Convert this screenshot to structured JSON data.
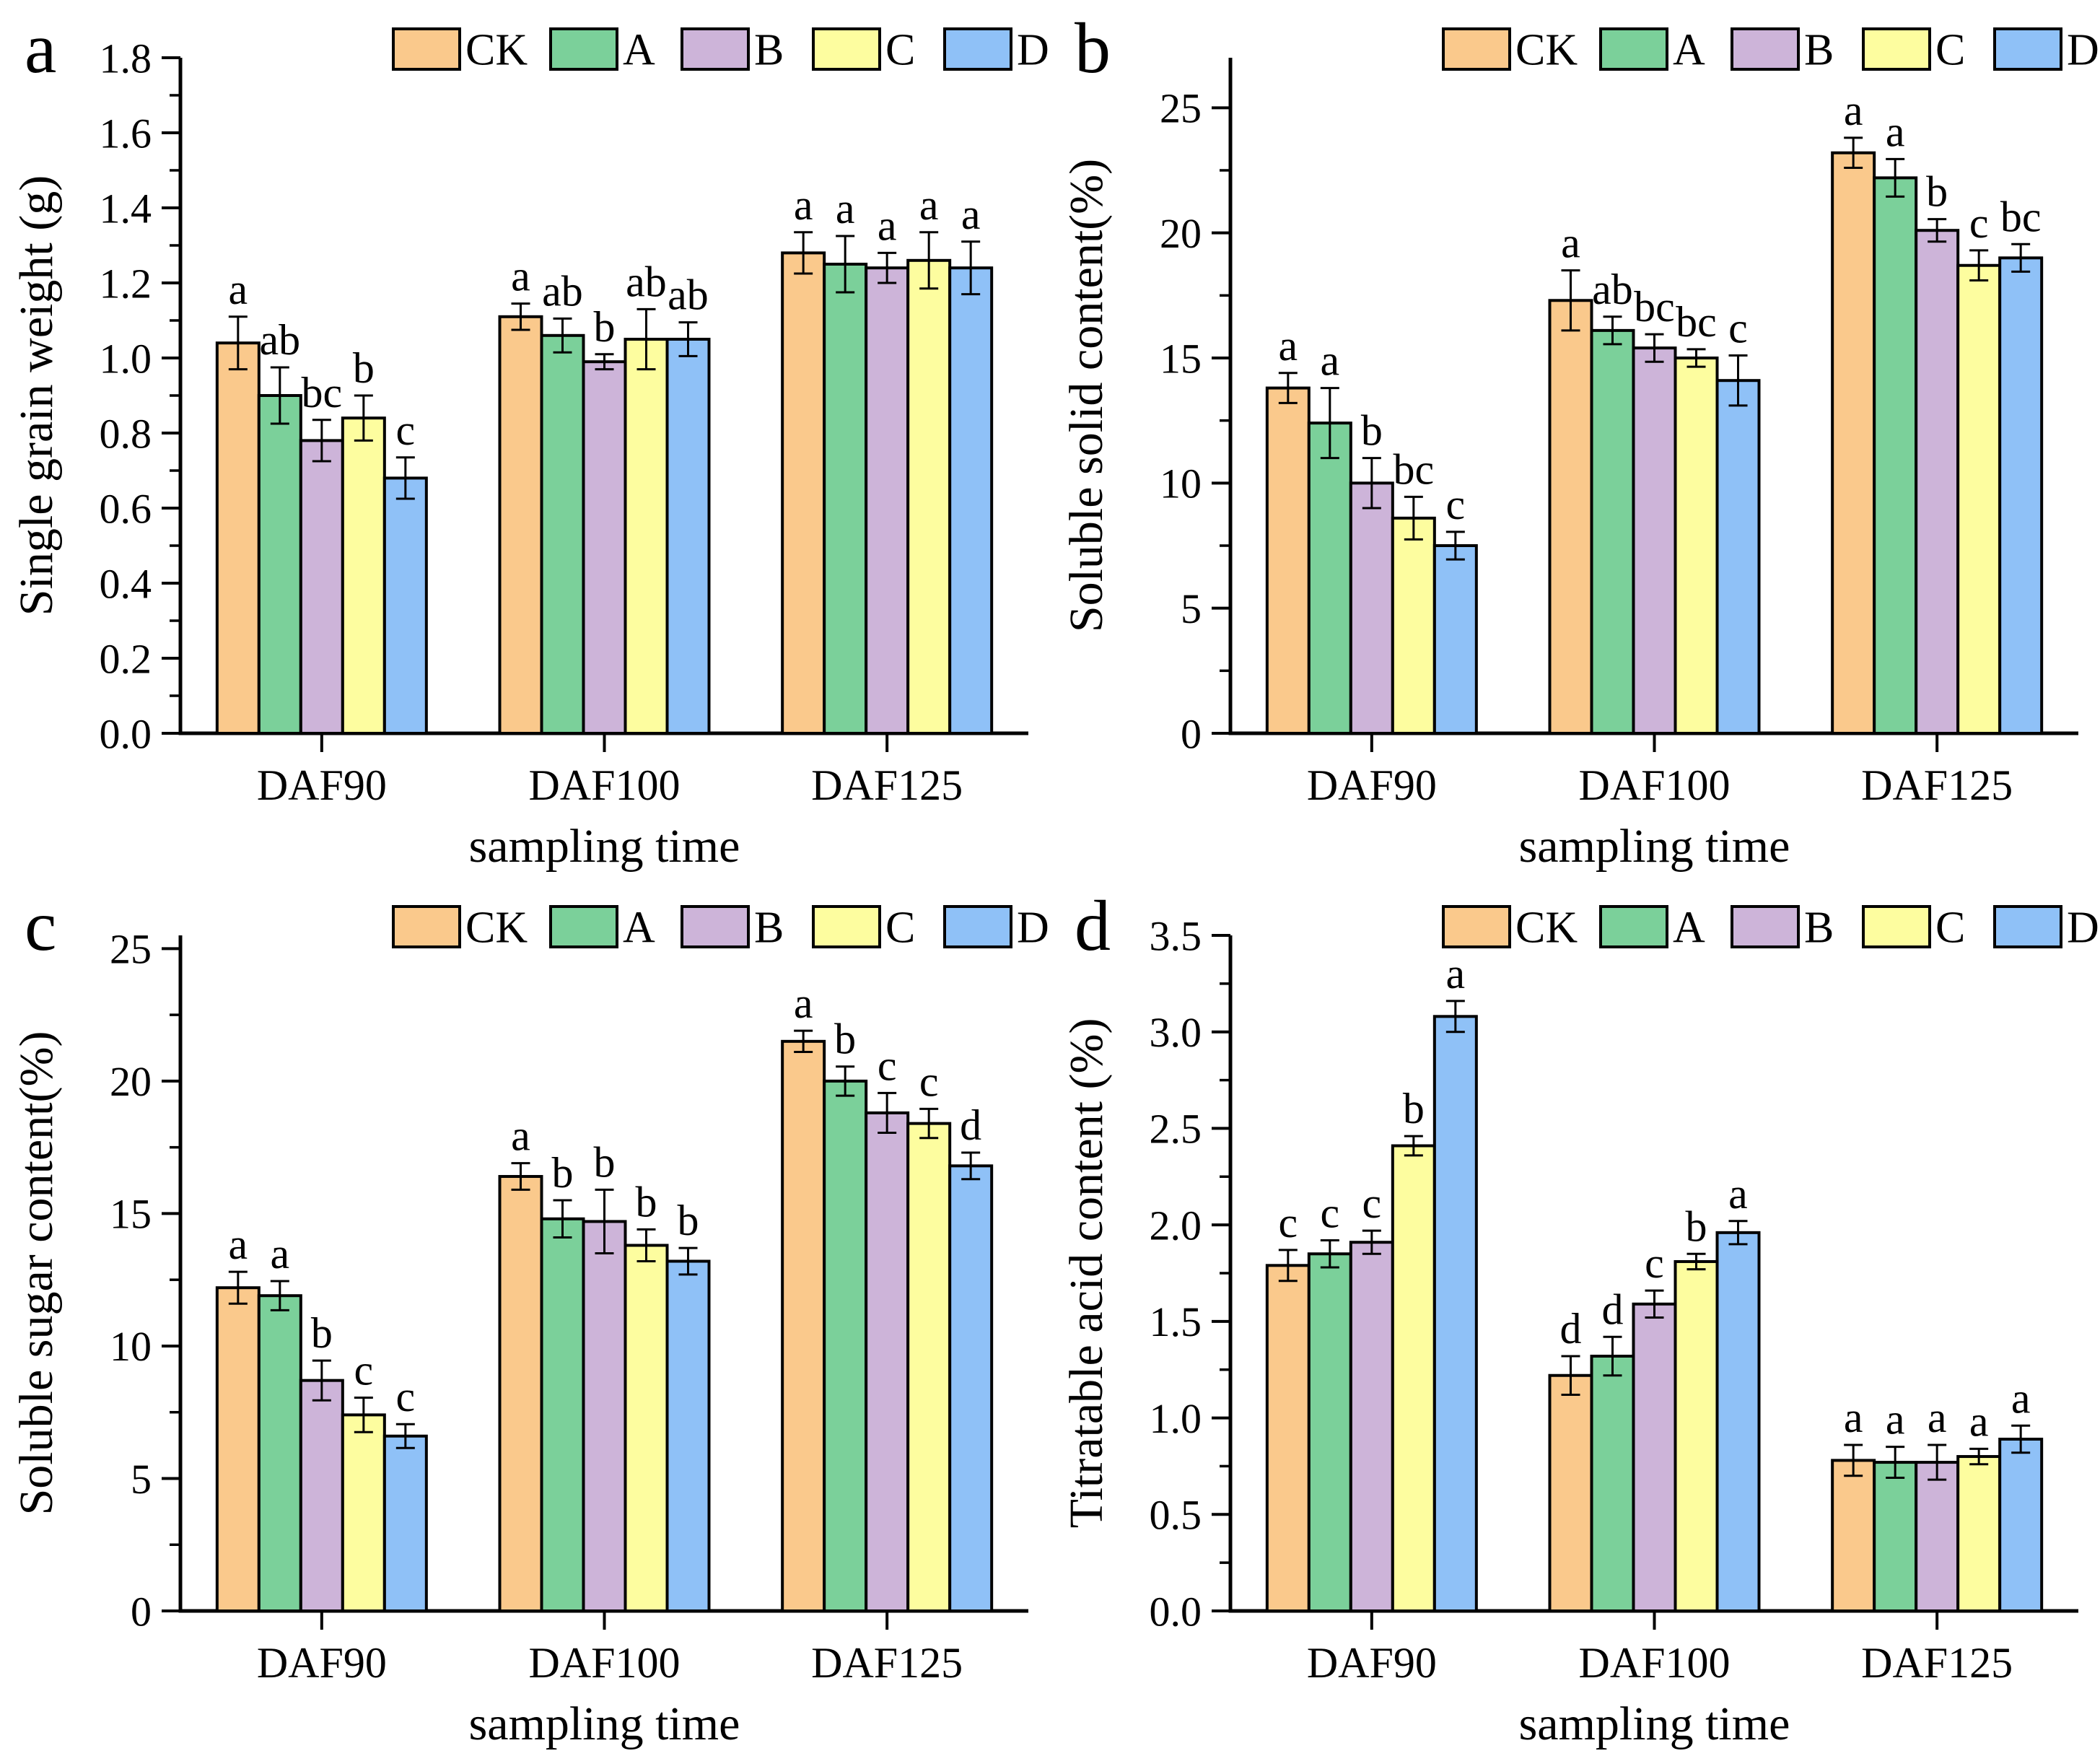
{
  "figure": {
    "description": "Four-panel grouped bar figure with error bars and significance letters",
    "panel_labels": [
      "a",
      "b",
      "c",
      "d"
    ],
    "legend_labels": [
      "CK",
      "A",
      "B",
      "C",
      "D"
    ],
    "colors": {
      "CK": "#FAC98C",
      "A": "#7BD09A",
      "B": "#CDB4D9",
      "C": "#FDFD9F",
      "D": "#8FC1F7",
      "axis": "#000000"
    }
  },
  "chart_data": [
    {
      "type": "bar",
      "panel_label": "a",
      "title": "",
      "xlabel": "sampling time",
      "ylabel": "Single grain weight (g)",
      "categories": [
        "DAF90",
        "DAF100",
        "DAF125"
      ],
      "ylim": [
        0,
        1.8
      ],
      "ytick_step": 0.2,
      "ytick_decimals": 1,
      "grid": false,
      "legend_position": "top",
      "series": [
        {
          "name": "CK",
          "color": "#FAC98C",
          "values": [
            1.04,
            1.11,
            1.28
          ],
          "errors": [
            0.07,
            0.035,
            0.055
          ],
          "sig_letters": [
            "a",
            "a",
            "a"
          ]
        },
        {
          "name": "A",
          "color": "#7BD09A",
          "values": [
            0.9,
            1.06,
            1.25
          ],
          "errors": [
            0.075,
            0.045,
            0.075
          ],
          "sig_letters": [
            "ab",
            "ab",
            "a"
          ]
        },
        {
          "name": "B",
          "color": "#CDB4D9",
          "values": [
            0.78,
            0.99,
            1.24
          ],
          "errors": [
            0.055,
            0.02,
            0.04
          ],
          "sig_letters": [
            "bc",
            "b",
            "a"
          ]
        },
        {
          "name": "C",
          "color": "#FDFD9F",
          "values": [
            0.84,
            1.05,
            1.26
          ],
          "errors": [
            0.06,
            0.08,
            0.075
          ],
          "sig_letters": [
            "b",
            "ab",
            "a"
          ]
        },
        {
          "name": "D",
          "color": "#8FC1F7",
          "values": [
            0.68,
            1.05,
            1.24
          ],
          "errors": [
            0.055,
            0.045,
            0.07
          ],
          "sig_letters": [
            "c",
            "ab",
            "a"
          ]
        }
      ]
    },
    {
      "type": "bar",
      "panel_label": "b",
      "title": "",
      "xlabel": "sampling time",
      "ylabel": "Soluble solid content(%)",
      "categories": [
        "DAF90",
        "DAF100",
        "DAF125"
      ],
      "ylim": [
        0,
        27
      ],
      "ytick_step": 5,
      "ytick_decimals": 0,
      "grid": false,
      "legend_position": "top",
      "series": [
        {
          "name": "CK",
          "color": "#FAC98C",
          "values": [
            13.8,
            17.3,
            23.2
          ],
          "errors": [
            0.6,
            1.2,
            0.6
          ],
          "sig_letters": [
            "a",
            "a",
            "a"
          ]
        },
        {
          "name": "A",
          "color": "#7BD09A",
          "values": [
            12.4,
            16.1,
            22.2
          ],
          "errors": [
            1.4,
            0.55,
            0.75
          ],
          "sig_letters": [
            "a",
            "ab",
            "a"
          ]
        },
        {
          "name": "B",
          "color": "#CDB4D9",
          "values": [
            10.0,
            15.4,
            20.1
          ],
          "errors": [
            1.0,
            0.55,
            0.45
          ],
          "sig_letters": [
            "b",
            "bc",
            "b"
          ]
        },
        {
          "name": "C",
          "color": "#FDFD9F",
          "values": [
            8.6,
            15.0,
            18.7
          ],
          "errors": [
            0.85,
            0.35,
            0.6
          ],
          "sig_letters": [
            "bc",
            "bc",
            "c"
          ]
        },
        {
          "name": "D",
          "color": "#8FC1F7",
          "values": [
            7.5,
            14.1,
            19.0
          ],
          "errors": [
            0.55,
            1.0,
            0.55
          ],
          "sig_letters": [
            "c",
            "c",
            "bc"
          ]
        }
      ]
    },
    {
      "type": "bar",
      "panel_label": "c",
      "title": "",
      "xlabel": "sampling time",
      "ylabel": "Soluble sugar content(%)",
      "categories": [
        "DAF90",
        "DAF100",
        "DAF125"
      ],
      "ylim": [
        0,
        25.5
      ],
      "ytick_step": 5,
      "ytick_decimals": 0,
      "grid": false,
      "legend_position": "top",
      "series": [
        {
          "name": "CK",
          "color": "#FAC98C",
          "values": [
            12.2,
            16.4,
            21.5
          ],
          "errors": [
            0.6,
            0.5,
            0.4
          ],
          "sig_letters": [
            "a",
            "a",
            "a"
          ]
        },
        {
          "name": "A",
          "color": "#7BD09A",
          "values": [
            11.9,
            14.8,
            20.0
          ],
          "errors": [
            0.55,
            0.7,
            0.55
          ],
          "sig_letters": [
            "a",
            "b",
            "b"
          ]
        },
        {
          "name": "B",
          "color": "#CDB4D9",
          "values": [
            8.7,
            14.7,
            18.8
          ],
          "errors": [
            0.75,
            1.2,
            0.75
          ],
          "sig_letters": [
            "b",
            "b",
            "c"
          ]
        },
        {
          "name": "C",
          "color": "#FDFD9F",
          "values": [
            7.4,
            13.8,
            18.4
          ],
          "errors": [
            0.65,
            0.6,
            0.55
          ],
          "sig_letters": [
            "c",
            "b",
            "c"
          ]
        },
        {
          "name": "D",
          "color": "#8FC1F7",
          "values": [
            6.6,
            13.2,
            16.8
          ],
          "errors": [
            0.45,
            0.5,
            0.5
          ],
          "sig_letters": [
            "c",
            "b",
            "d"
          ]
        }
      ]
    },
    {
      "type": "bar",
      "panel_label": "d",
      "title": "",
      "xlabel": "sampling time",
      "ylabel": "Titratable acid content (%)",
      "categories": [
        "DAF90",
        "DAF100",
        "DAF125"
      ],
      "ylim": [
        0,
        3.5
      ],
      "ytick_step": 0.5,
      "ytick_decimals": 1,
      "grid": false,
      "legend_position": "top",
      "series": [
        {
          "name": "CK",
          "color": "#FAC98C",
          "values": [
            1.79,
            1.22,
            0.78
          ],
          "errors": [
            0.08,
            0.1,
            0.08
          ],
          "sig_letters": [
            "c",
            "d",
            "a"
          ]
        },
        {
          "name": "A",
          "color": "#7BD09A",
          "values": [
            1.85,
            1.32,
            0.77
          ],
          "errors": [
            0.07,
            0.1,
            0.08
          ],
          "sig_letters": [
            "c",
            "d",
            "a"
          ]
        },
        {
          "name": "B",
          "color": "#CDB4D9",
          "values": [
            1.91,
            1.59,
            0.77
          ],
          "errors": [
            0.06,
            0.07,
            0.09
          ],
          "sig_letters": [
            "c",
            "c",
            "a"
          ]
        },
        {
          "name": "C",
          "color": "#FDFD9F",
          "values": [
            2.41,
            1.81,
            0.8
          ],
          "errors": [
            0.05,
            0.04,
            0.04
          ],
          "sig_letters": [
            "b",
            "b",
            "a"
          ]
        },
        {
          "name": "D",
          "color": "#8FC1F7",
          "values": [
            3.08,
            1.96,
            0.89
          ],
          "errors": [
            0.08,
            0.06,
            0.07
          ],
          "sig_letters": [
            "a",
            "a",
            "a"
          ]
        }
      ]
    }
  ]
}
